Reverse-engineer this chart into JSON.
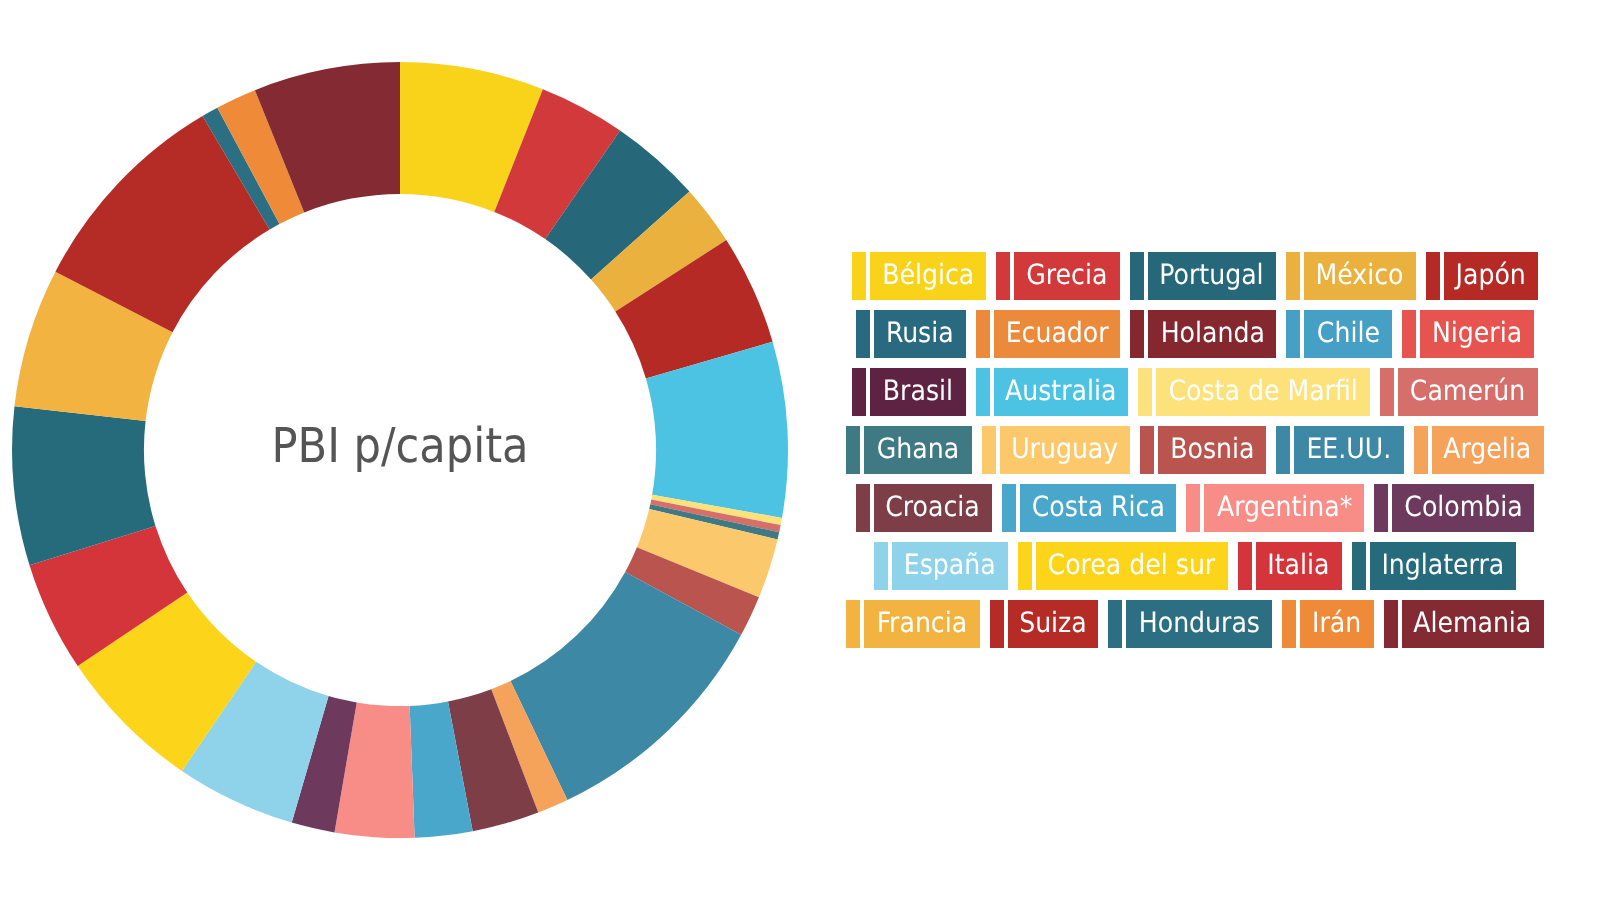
{
  "chart_data": {
    "type": "donut",
    "title": "PBI p/capita",
    "categories": [
      "Bélgica",
      "Grecia",
      "Portugal",
      "México",
      "Japón",
      "Rusia",
      "Ecuador",
      "Holanda",
      "Chile",
      "Nigeria",
      "Brasil",
      "Australia",
      "Costa de Marfil",
      "Camerún",
      "Ghana",
      "Uruguay",
      "Bosnia",
      "EE.UU.",
      "Argelia",
      "Croacia",
      "Costa Rica",
      "Argentina*",
      "Colombia",
      "España",
      "Corea del sur",
      "Italia",
      "Inglaterra",
      "Francia",
      "Suiza",
      "Honduras",
      "Irán",
      "Alemania"
    ],
    "values": [
      6.0,
      3.6,
      3.8,
      2.5,
      4.6,
      null,
      null,
      null,
      null,
      null,
      null,
      7.3,
      0.3,
      0.3,
      0.3,
      2.5,
      1.7,
      10.0,
      1.3,
      2.8,
      2.4,
      3.3,
      1.8,
      5.0,
      6.1,
      4.6,
      6.6,
      5.8,
      8.9,
      0.7,
      1.7,
      6.1
    ],
    "colors": [
      "#f9d21a",
      "#d2393a",
      "#26687a",
      "#eab13f",
      "#b52a24",
      "#2a6a80",
      "#ec8a3c",
      "#85272f",
      "#46a0c6",
      "#e7534e",
      "#5e2343",
      "#4cc3e3",
      "#fde17a",
      "#d66f6a",
      "#3f7a84",
      "#fbc96b",
      "#b9554e",
      "#3c88a5",
      "#f5a25a",
      "#7d3e48",
      "#4aa7cc",
      "#f88c86",
      "#6d3a5e",
      "#8fd3ea",
      "#fcd41a",
      "#d3353a",
      "#256b7c",
      "#f2b340",
      "#b52b25",
      "#2c6e82",
      "#ee8a38",
      "#842a33"
    ],
    "legend": "right"
  }
}
